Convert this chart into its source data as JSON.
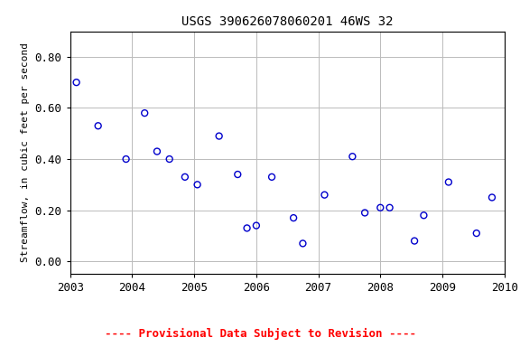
{
  "title": "USGS 390626078060201 46WS 32",
  "ylabel": "Streamflow, in cubic feet per second",
  "xlim": [
    2003,
    2010
  ],
  "ylim": [
    -0.05,
    0.9
  ],
  "yticks": [
    0.0,
    0.2,
    0.4,
    0.6,
    0.8
  ],
  "xticks": [
    2003,
    2004,
    2005,
    2006,
    2007,
    2008,
    2009,
    2010
  ],
  "footnote": "---- Provisional Data Subject to Revision ----",
  "footnote_color": "#ff0000",
  "x": [
    2003.1,
    2003.45,
    2003.9,
    2004.2,
    2004.4,
    2004.6,
    2004.85,
    2005.05,
    2005.4,
    2005.7,
    2005.85,
    2006.0,
    2006.25,
    2006.6,
    2006.75,
    2007.1,
    2007.55,
    2007.75,
    2008.0,
    2008.15,
    2008.55,
    2008.7,
    2009.1,
    2009.55,
    2009.8
  ],
  "y": [
    0.7,
    0.53,
    0.4,
    0.58,
    0.43,
    0.4,
    0.33,
    0.3,
    0.49,
    0.34,
    0.13,
    0.14,
    0.33,
    0.17,
    0.07,
    0.26,
    0.41,
    0.19,
    0.21,
    0.21,
    0.08,
    0.18,
    0.31,
    0.11,
    0.25
  ],
  "marker_color": "#0000cc",
  "marker_size": 5,
  "bg_color": "#ffffff",
  "grid_color": "#bbbbbb"
}
